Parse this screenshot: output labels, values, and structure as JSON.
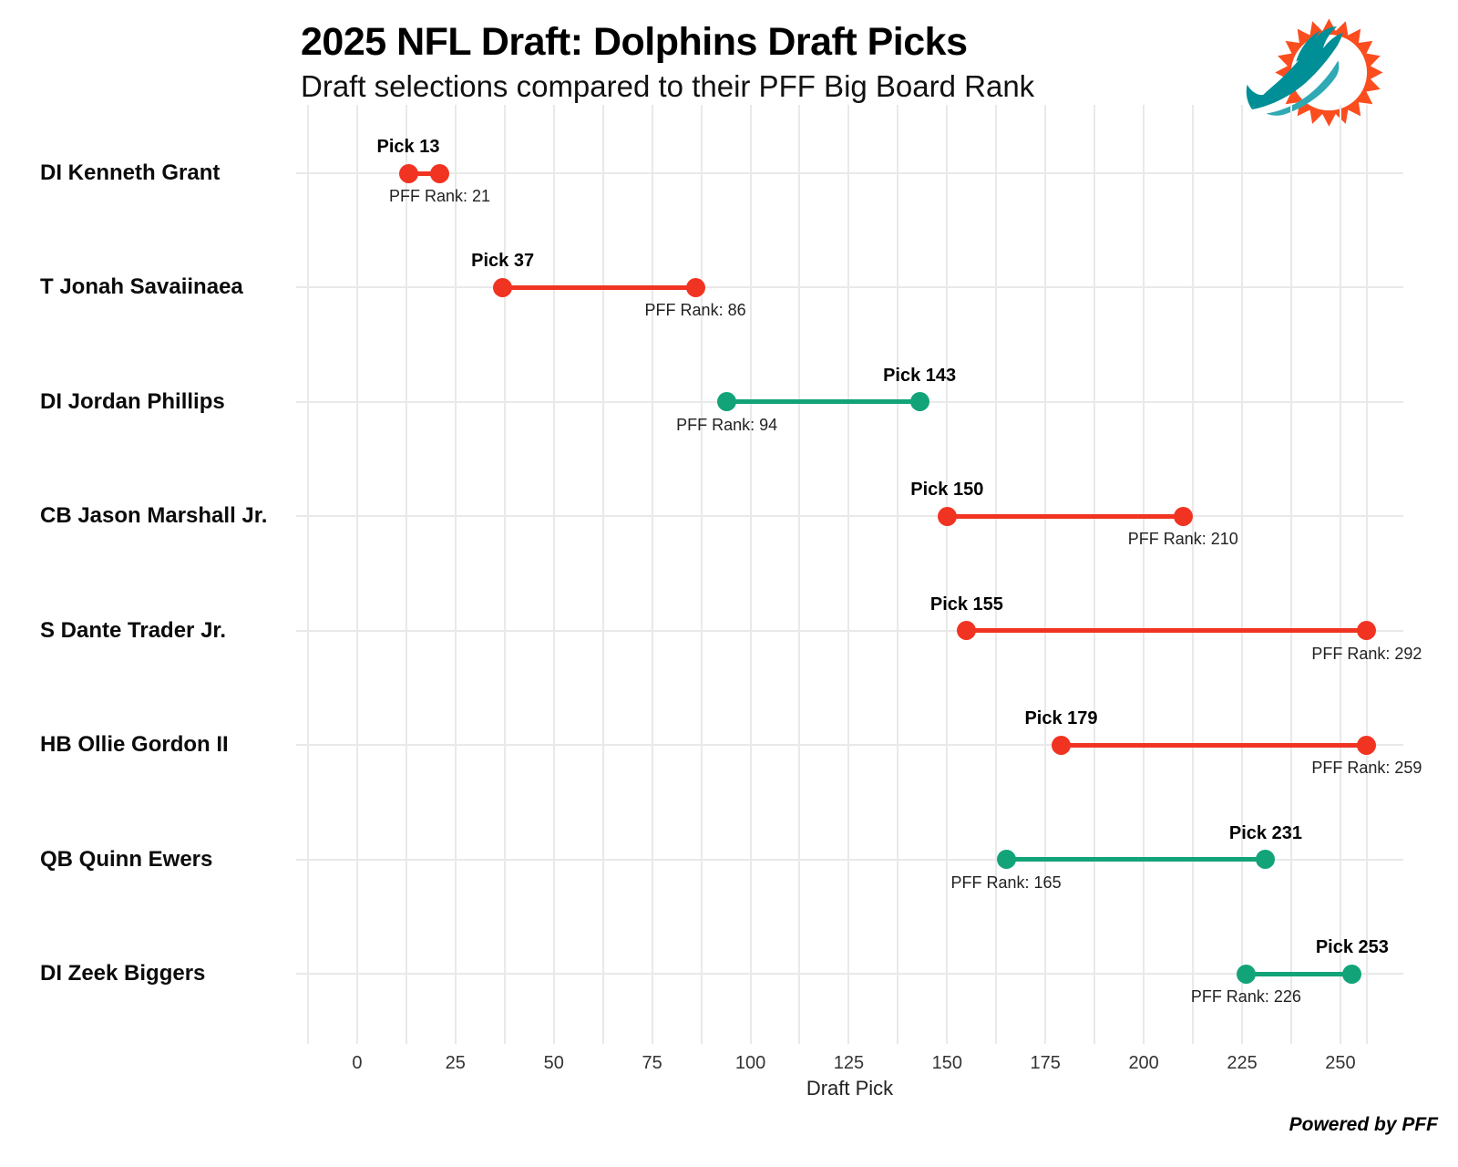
{
  "header": {
    "title": "2025 NFL Draft: Dolphins Draft Picks",
    "subtitle": "Draft selections compared to their PFF Big Board Rank"
  },
  "logo": {
    "name": "miami-dolphins-logo",
    "orange": "#FB4D1E",
    "teal": "#008E97",
    "teal_light": "#2FA9B4"
  },
  "footer": {
    "credit": "Powered by PFF"
  },
  "colors": {
    "red": "#F13422",
    "green": "#12A379",
    "gridline": "#E9E9E9"
  },
  "chart_data": {
    "type": "dumbbell",
    "title": "2025 NFL Draft: Dolphins Draft Picks",
    "subtitle": "Draft selections compared to their PFF Big Board Rank",
    "xlabel": "Draft Pick",
    "x_ticks": [
      0,
      25,
      50,
      75,
      100,
      125,
      150,
      175,
      200,
      225,
      250
    ],
    "x_minor_grid_step": 12.5,
    "x_display_range": [
      -15.5,
      266
    ],
    "x_clamp_max": 256.7,
    "grid": "on",
    "legend": "none",
    "color_legend_meaning": {
      "red": "PFF rank worse than pick",
      "green": "PFF rank better than pick"
    },
    "players": [
      {
        "name": "DI Kenneth Grant",
        "pick": 13,
        "pff_rank": 21,
        "pick_label": "Pick 13",
        "rank_label": "PFF Rank: 21",
        "color": "red"
      },
      {
        "name": "T Jonah Savaiinaea",
        "pick": 37,
        "pff_rank": 86,
        "pick_label": "Pick 37",
        "rank_label": "PFF Rank: 86",
        "color": "red"
      },
      {
        "name": "DI Jordan Phillips",
        "pick": 143,
        "pff_rank": 94,
        "pick_label": "Pick 143",
        "rank_label": "PFF Rank: 94",
        "color": "green"
      },
      {
        "name": "CB Jason Marshall Jr.",
        "pick": 150,
        "pff_rank": 210,
        "pick_label": "Pick 150",
        "rank_label": "PFF Rank: 210",
        "color": "red"
      },
      {
        "name": "S Dante Trader Jr.",
        "pick": 155,
        "pff_rank": 292,
        "pick_label": "Pick 155",
        "rank_label": "PFF Rank: 292",
        "color": "red"
      },
      {
        "name": "HB Ollie Gordon II",
        "pick": 179,
        "pff_rank": 259,
        "pick_label": "Pick 179",
        "rank_label": "PFF Rank: 259",
        "color": "red"
      },
      {
        "name": "QB Quinn Ewers",
        "pick": 231,
        "pff_rank": 165,
        "pick_label": "Pick 231",
        "rank_label": "PFF Rank: 165",
        "color": "green"
      },
      {
        "name": "DI Zeek Biggers",
        "pick": 253,
        "pff_rank": 226,
        "pick_label": "Pick 253",
        "rank_label": "PFF Rank: 226",
        "color": "green"
      }
    ]
  }
}
